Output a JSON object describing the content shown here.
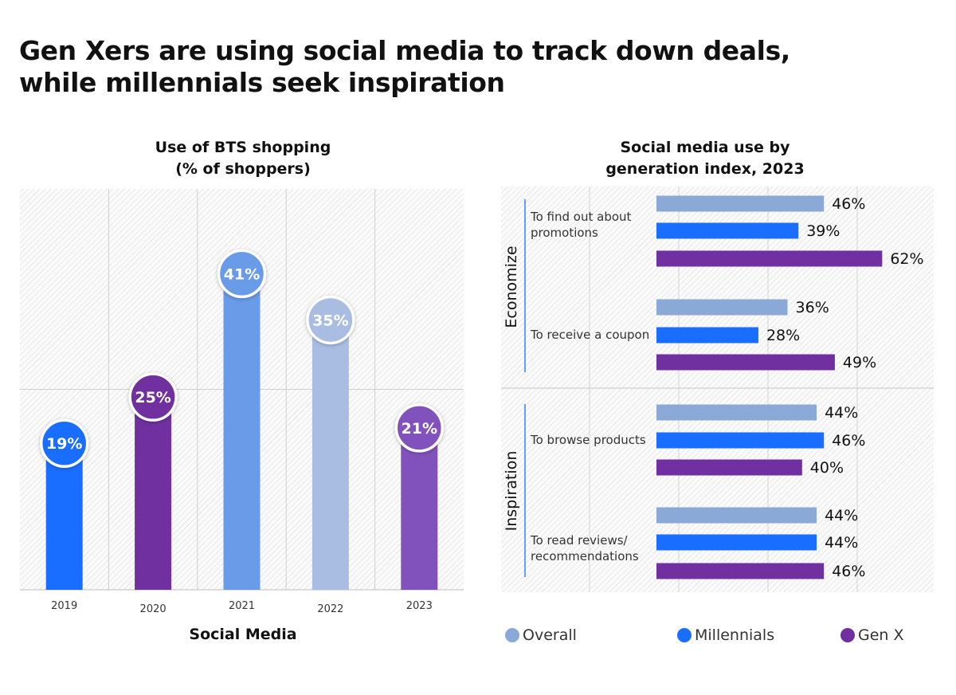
{
  "page": {
    "title_lines": [
      "Gen Xers are using social media to track down deals,",
      "while millennials seek inspiration"
    ]
  },
  "left_chart": {
    "title_lines": [
      "Use of BTS shopping",
      "(% of shoppers)"
    ],
    "xlabel": "Social Media"
  },
  "right_chart": {
    "title_lines": [
      "Social media use by",
      "generation index, 2023"
    ]
  },
  "legend": [
    {
      "label": "Overall",
      "color": "#8BA9D6"
    },
    {
      "label": "Millennials",
      "color": "#1A6EFF"
    },
    {
      "label": "Gen X",
      "color": "#7030A0"
    }
  ],
  "chart_data": [
    {
      "type": "bar",
      "title": "Use of BTS shopping (% of shoppers)",
      "xlabel": "Social Media",
      "ylabel": "",
      "ylim": [
        0,
        52
      ],
      "grid": true,
      "categories": [
        "2019",
        "2020",
        "2021",
        "2022",
        "2023"
      ],
      "values": [
        19,
        25,
        41,
        35,
        21
      ],
      "labels": [
        "19%",
        "25%",
        "41%",
        "35%",
        "21%"
      ],
      "colors": [
        "#1A6EFF",
        "#7030A0",
        "#6A9BE8",
        "#A9BDE3",
        "#8252BC"
      ]
    },
    {
      "type": "bar",
      "orientation": "horizontal",
      "title": "Social media use by generation index, 2023",
      "xlim": [
        0,
        70
      ],
      "grid": true,
      "legend_position": "bottom",
      "groups": [
        {
          "name": "Economize",
          "items": [
            {
              "label": "To find out about promotions",
              "label_lines": [
                "To find out about",
                "promotions"
              ],
              "values": [
                46,
                39,
                62
              ],
              "labels": [
                "46%",
                "39%",
                "62%"
              ]
            },
            {
              "label": "To receive a coupon",
              "label_lines": [
                "To receive a coupon"
              ],
              "values": [
                36,
                28,
                49
              ],
              "labels": [
                "36%",
                "28%",
                "49%"
              ]
            }
          ]
        },
        {
          "name": "Inspiration",
          "items": [
            {
              "label": "To browse products",
              "label_lines": [
                "To browse products"
              ],
              "values": [
                44,
                46,
                40
              ],
              "labels": [
                "44%",
                "46%",
                "40%"
              ]
            },
            {
              "label": "To read reviews/ recommendations",
              "label_lines": [
                "To read reviews/",
                "recommendations"
              ],
              "values": [
                44,
                44,
                46
              ],
              "labels": [
                "44%",
                "44%",
                "46%"
              ]
            }
          ]
        }
      ],
      "series": [
        {
          "name": "Overall",
          "color": "#8BA9D6"
        },
        {
          "name": "Millennials",
          "color": "#1A6EFF"
        },
        {
          "name": "Gen X",
          "color": "#7030A0"
        }
      ]
    }
  ]
}
